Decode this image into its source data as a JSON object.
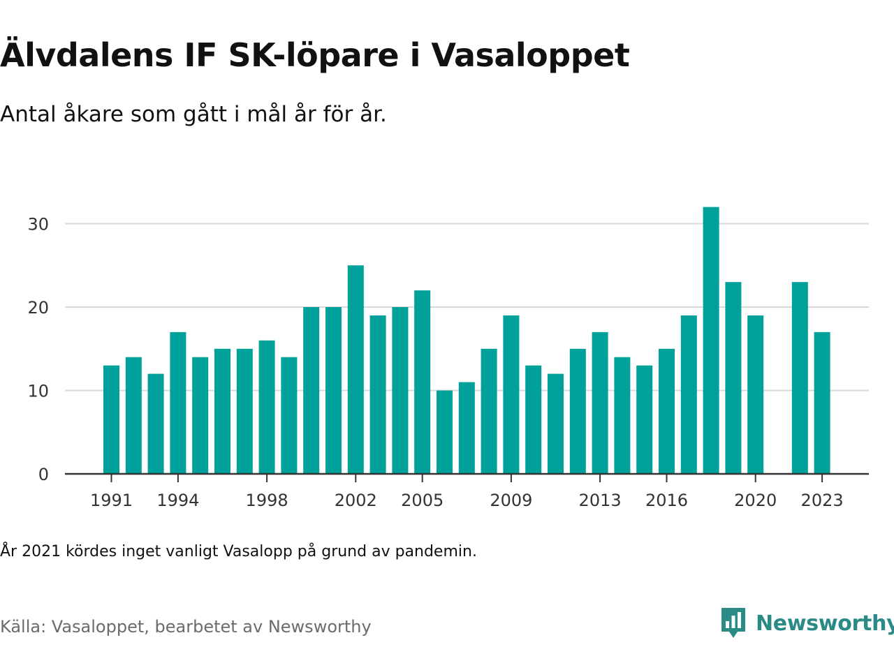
{
  "title": "Älvdalens IF SK-löpare i Vasaloppet",
  "subtitle": "Antal åkare som gått i mål år för år.",
  "note": "År 2021 kördes inget vanligt Vasalopp på grund av pandemin.",
  "source": "Källa: Vasaloppet, bearbetet av Newsworthy",
  "brand": {
    "name": "Newsworthy",
    "icon": "newsworthy-logo-icon"
  },
  "colors": {
    "bar": "#00a19a",
    "grid": "#d9d9d9",
    "axis": "#333333",
    "brand": "#2a8a86"
  },
  "chart_data": {
    "type": "bar",
    "categories": [
      1991,
      1992,
      1993,
      1994,
      1995,
      1996,
      1997,
      1998,
      1999,
      2000,
      2001,
      2002,
      2003,
      2004,
      2005,
      2006,
      2007,
      2008,
      2009,
      2010,
      2011,
      2012,
      2013,
      2014,
      2015,
      2016,
      2017,
      2018,
      2019,
      2020,
      2021,
      2022,
      2023
    ],
    "values": [
      13,
      14,
      12,
      17,
      14,
      15,
      15,
      16,
      14,
      20,
      20,
      25,
      19,
      20,
      22,
      10,
      11,
      15,
      19,
      13,
      12,
      15,
      17,
      14,
      13,
      15,
      19,
      32,
      23,
      19,
      null,
      23,
      17
    ],
    "xticks": [
      1991,
      1994,
      1998,
      2002,
      2005,
      2009,
      2013,
      2016,
      2020,
      2023
    ],
    "yticks": [
      0,
      10,
      20,
      30
    ],
    "ylim": [
      0,
      33
    ],
    "grid": true,
    "xlabel": "",
    "ylabel": ""
  }
}
